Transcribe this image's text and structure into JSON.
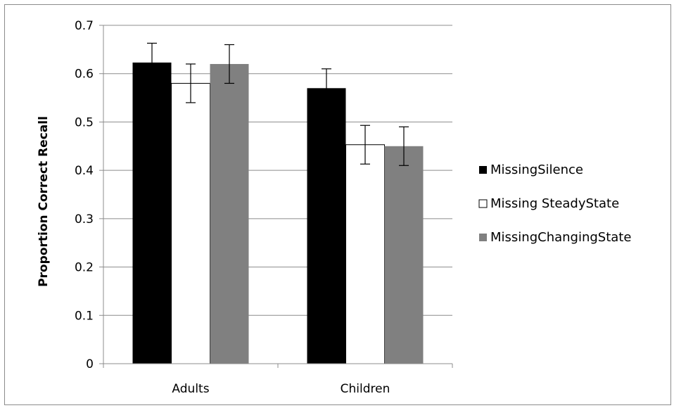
{
  "chart_data": {
    "type": "bar",
    "title": "",
    "xlabel": "",
    "ylabel": "Proportion Correct Recall",
    "ylim": [
      0,
      0.7
    ],
    "yticks": [
      "0",
      "0.1",
      "0.2",
      "0.3",
      "0.4",
      "0.5",
      "0.6",
      "0.7"
    ],
    "grid": true,
    "legend_position": "right",
    "categories": [
      "Adults",
      "Children"
    ],
    "series": [
      {
        "name": "MissingSilence",
        "color": "#000000",
        "values": [
          0.623,
          0.57
        ],
        "error": [
          0.04,
          0.04
        ]
      },
      {
        "name": "Missing SteadyState",
        "color": "#ffffff",
        "values": [
          0.58,
          0.453
        ],
        "error": [
          0.04,
          0.04
        ]
      },
      {
        "name": "MissingChangingState",
        "color": "#808080",
        "values": [
          0.62,
          0.45
        ],
        "error": [
          0.04,
          0.04
        ]
      }
    ]
  }
}
